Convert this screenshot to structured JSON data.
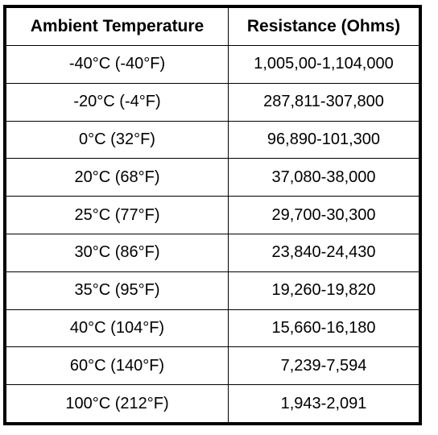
{
  "table": {
    "headers": [
      "Ambient Temperature",
      "Resistance (Ohms)"
    ],
    "rows": [
      [
        "-40°C (-40°F)",
        "1,005,00-1,104,000"
      ],
      [
        "-20°C (-4°F)",
        "287,811-307,800"
      ],
      [
        "0°C (32°F)",
        "96,890-101,300"
      ],
      [
        "20°C (68°F)",
        "37,080-38,000"
      ],
      [
        "25°C (77°F)",
        "29,700-30,300"
      ],
      [
        "30°C (86°F)",
        "23,840-24,430"
      ],
      [
        "35°C (95°F)",
        "19,260-19,820"
      ],
      [
        "40°C (104°F)",
        "15,660-16,180"
      ],
      [
        "60°C (140°F)",
        "7,239-7,594"
      ],
      [
        "100°C (212°F)",
        "1,943-2,091"
      ]
    ]
  }
}
